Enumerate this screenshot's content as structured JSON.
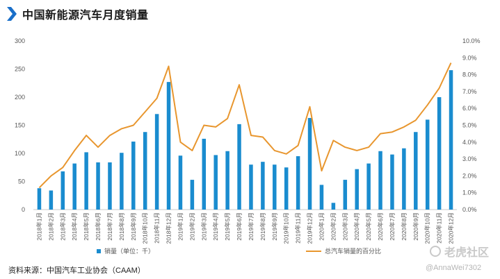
{
  "header": {
    "title": "中国新能源汽车月度销量"
  },
  "legend": {
    "bar_label": "销量（单位：千）",
    "line_label": "总汽车销量的百分比"
  },
  "source": "资料来源：中国汽车工业协会（CAAM）",
  "watermark": {
    "logo_text": "老虎社区",
    "user": "@AnnaWei7302"
  },
  "colors": {
    "bar": "#1a8ccf",
    "line": "#e8962e",
    "axis_text": "#555555",
    "grid": "#e6e6e6"
  },
  "chart_data": {
    "type": "bar",
    "categories": [
      "2018年1月",
      "2018年2月",
      "2018年3月",
      "2018年4月",
      "2018年5月",
      "2018年6月",
      "2018年7月",
      "2018年8月",
      "2018年9月",
      "2018年10月",
      "2018年11月",
      "2018年12月",
      "2019年1月",
      "2019年2月",
      "2019年3月",
      "2019年4月",
      "2019年5月",
      "2019年6月",
      "2019年7月",
      "2019年8月",
      "2019年9月",
      "2019年10月",
      "2019年11月",
      "2019年12月",
      "2020年1月",
      "2020年2月",
      "2020年3月",
      "2020年4月",
      "2020年5月",
      "2020年6月",
      "2020年7月",
      "2020年8月",
      "2020年9月",
      "2020年10月",
      "2020年11月",
      "2020年12月"
    ],
    "series": [
      {
        "name": "销量（单位：千）",
        "type": "bar",
        "axis": "left",
        "values": [
          38,
          34,
          68,
          82,
          102,
          84,
          84,
          101,
          121,
          138,
          170,
          227,
          96,
          53,
          126,
          97,
          104,
          152,
          80,
          85,
          80,
          75,
          95,
          163,
          44,
          12,
          53,
          72,
          82,
          104,
          98,
          109,
          138,
          160,
          200,
          248
        ]
      },
      {
        "name": "总汽车销量的百分比",
        "type": "line",
        "axis": "right",
        "values": [
          1.3,
          2.0,
          2.5,
          3.5,
          4.4,
          3.7,
          4.4,
          4.8,
          5.0,
          5.8,
          6.6,
          8.5,
          4.0,
          3.5,
          5.0,
          4.9,
          5.4,
          7.4,
          4.4,
          4.3,
          3.5,
          3.3,
          3.8,
          6.1,
          2.3,
          4.1,
          3.7,
          3.5,
          3.7,
          4.5,
          4.6,
          4.9,
          5.3,
          6.2,
          7.2,
          8.7
        ]
      }
    ],
    "y_left": {
      "ylim": [
        0,
        300
      ],
      "ticks": [
        "0",
        "50",
        "100",
        "150",
        "200",
        "250",
        "300"
      ]
    },
    "y_right": {
      "ylim": [
        0,
        10
      ],
      "ticks": [
        "0.0%",
        "1.0%",
        "2.0%",
        "3.0%",
        "4.0%",
        "5.0%",
        "6.0%",
        "7.0%",
        "8.0%",
        "9.0%",
        "10.0%"
      ]
    },
    "grid": false,
    "legend_position": "bottom"
  }
}
